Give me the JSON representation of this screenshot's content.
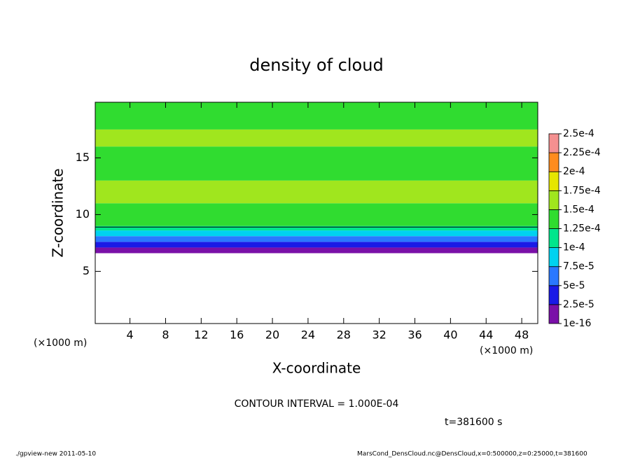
{
  "chart_data": {
    "type": "layered-contour",
    "title": "density of cloud",
    "x_label": "X-coordinate",
    "y_label": "Z-coordinate",
    "x_unit": "(×1000 m)",
    "y_unit": "(×1000 m)",
    "xlim": [
      0.1,
      49.8
    ],
    "xticks": [
      4,
      8,
      12,
      16,
      20,
      24,
      28,
      32,
      36,
      40,
      44,
      48
    ],
    "ylim": [
      0.4,
      19.9
    ],
    "yticks": [
      5,
      10,
      15
    ],
    "z_bins": [
      6.6,
      7.1,
      7.6,
      8.1,
      8.6,
      9,
      11,
      13,
      16,
      17.5,
      19.9
    ],
    "values": [
      1e-05,
      3e-05,
      5e-05,
      8e-05,
      0.00011,
      0.00013,
      0.00015,
      0.00014,
      0.00015,
      0.00013
    ],
    "contour_z": 8.9,
    "colorbar_levels": [
      1e-16,
      {
        "value": 2.5e-05,
        "label": "2.5e-5"
      },
      {
        "value": 5e-05,
        "label": "5e-5"
      },
      {
        "value": 7.5e-05,
        "label": "7.5e-5"
      },
      {
        "value": 0.0001,
        "label": "1e-4"
      },
      {
        "value": 0.000125,
        "label": "1.25e-4"
      },
      {
        "value": 0.00015,
        "label": "1.5e-4"
      },
      {
        "value": 0.000175,
        "label": "1.75e-4"
      },
      {
        "value": 0.0002,
        "label": "2e-4"
      },
      {
        "value": 0.000225,
        "label": "2.25e-4"
      },
      {
        "value": 0.00025,
        "label": "2.5e-4"
      }
    ],
    "colors": [
      "#7a10a8",
      "#1a1ae6",
      "#2a78ff",
      "#00d2f0",
      "#00e68c",
      "#30dc30",
      "#a0e61e",
      "#e6e600",
      "#ff8c1e",
      "#f49090"
    ],
    "contour_note": "CONTOUR INTERVAL = 1.000E-04",
    "time_note": "t=381600 s",
    "footer_left": "./gpview-new  2011-05-10",
    "footer_right": "MarsCond_DensCloud.nc@DensCloud,x=0:500000,z=0:25000,t=381600"
  }
}
